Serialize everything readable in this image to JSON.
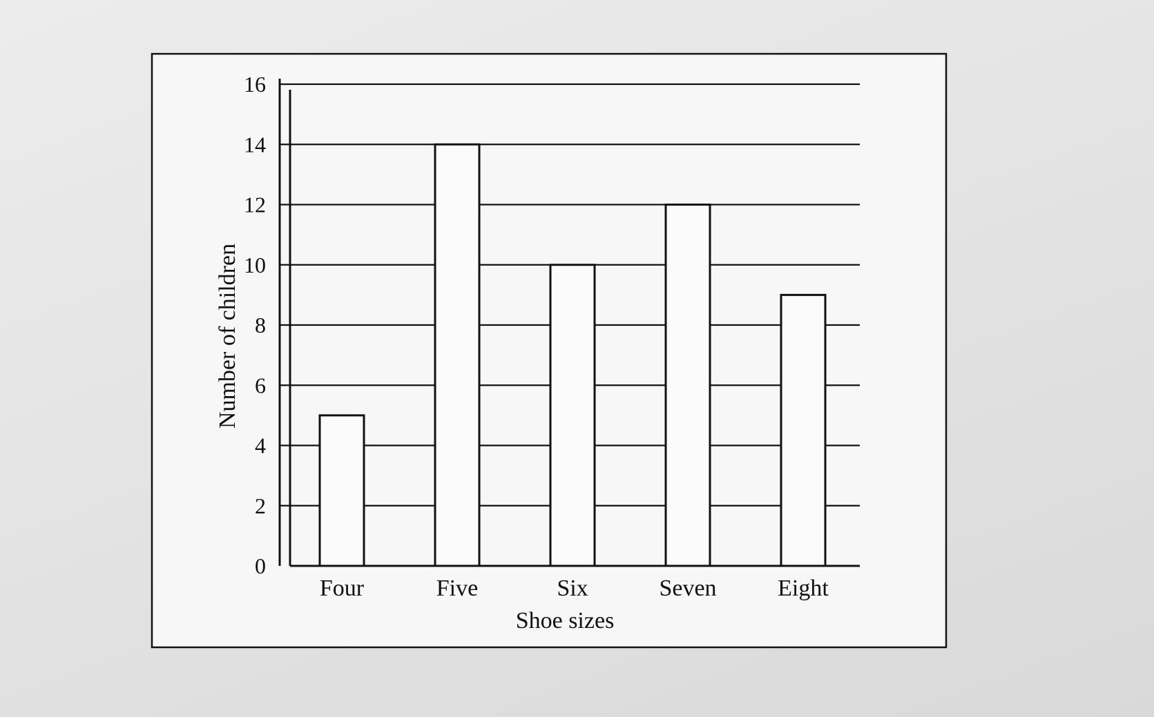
{
  "chart_data": {
    "type": "bar",
    "xlabel": "Shoe sizes",
    "ylabel": "Number of children",
    "categories": [
      "Four",
      "Five",
      "Six",
      "Seven",
      "Eight"
    ],
    "values": [
      5,
      14,
      10,
      12,
      9
    ],
    "ylim": [
      0,
      16
    ],
    "yticks": [
      "0",
      "2",
      "4",
      "6",
      "8",
      "10",
      "12",
      "14",
      "16"
    ],
    "grid": true
  }
}
